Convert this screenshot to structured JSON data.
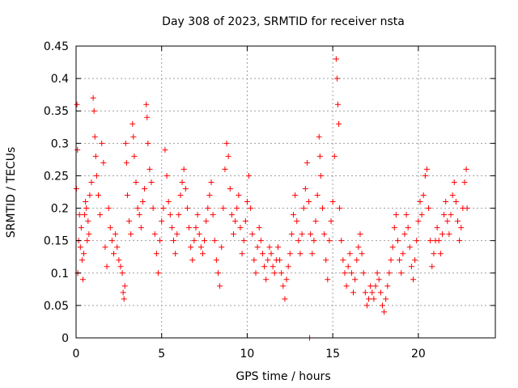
{
  "chart_data": {
    "type": "scatter",
    "title": "Day 308 of 2023, SRMTID for receiver nsta",
    "xlabel": "GPS time / hours",
    "ylabel": "SRMTID / TECUs",
    "xlim": [
      0,
      24.5
    ],
    "ylim": [
      0,
      0.45
    ],
    "x_ticks": [
      0,
      5,
      10,
      15,
      20
    ],
    "x_tick_labels": [
      "0",
      "5",
      "10",
      "15",
      "20"
    ],
    "y_ticks": [
      0,
      0.05,
      0.1,
      0.15,
      0.2,
      0.25,
      0.3,
      0.35,
      0.4,
      0.45
    ],
    "y_tick_labels": [
      "0",
      "0.05",
      "0.1",
      "0.15",
      "0.2",
      "0.25",
      "0.3",
      "0.35",
      "0.4",
      "0.45"
    ],
    "grid": true,
    "marker": "+",
    "color": "#ff0000",
    "series": [
      {
        "name": "SRMTID",
        "points": [
          [
            0.02,
            0.23
          ],
          [
            0.05,
            0.36
          ],
          [
            0.08,
            0.29
          ],
          [
            0.1,
            0.1
          ],
          [
            0.15,
            0.15
          ],
          [
            0.2,
            0.19
          ],
          [
            0.25,
            0.14
          ],
          [
            0.3,
            0.17
          ],
          [
            0.35,
            0.12
          ],
          [
            0.4,
            0.09
          ],
          [
            0.45,
            0.13
          ],
          [
            0.5,
            0.19
          ],
          [
            0.55,
            0.21
          ],
          [
            0.6,
            0.2
          ],
          [
            0.65,
            0.15
          ],
          [
            0.7,
            0.18
          ],
          [
            0.75,
            0.16
          ],
          [
            0.8,
            0.22
          ],
          [
            0.9,
            0.24
          ],
          [
            1.0,
            0.37
          ],
          [
            1.05,
            0.35
          ],
          [
            1.1,
            0.31
          ],
          [
            1.15,
            0.28
          ],
          [
            1.2,
            0.25
          ],
          [
            1.3,
            0.22
          ],
          [
            1.4,
            0.19
          ],
          [
            1.5,
            0.3
          ],
          [
            1.6,
            0.27
          ],
          [
            1.7,
            0.14
          ],
          [
            1.8,
            0.11
          ],
          [
            1.9,
            0.2
          ],
          [
            2.0,
            0.17
          ],
          [
            2.1,
            0.15
          ],
          [
            2.2,
            0.13
          ],
          [
            2.3,
            0.16
          ],
          [
            2.4,
            0.14
          ],
          [
            2.5,
            0.12
          ],
          [
            2.6,
            0.11
          ],
          [
            2.7,
            0.1
          ],
          [
            2.75,
            0.07
          ],
          [
            2.8,
            0.06
          ],
          [
            2.85,
            0.08
          ],
          [
            2.9,
            0.3
          ],
          [
            2.95,
            0.27
          ],
          [
            3.0,
            0.22
          ],
          [
            3.1,
            0.18
          ],
          [
            3.2,
            0.16
          ],
          [
            3.3,
            0.33
          ],
          [
            3.35,
            0.31
          ],
          [
            3.4,
            0.28
          ],
          [
            3.5,
            0.24
          ],
          [
            3.6,
            0.2
          ],
          [
            3.7,
            0.19
          ],
          [
            3.8,
            0.17
          ],
          [
            3.9,
            0.21
          ],
          [
            4.0,
            0.23
          ],
          [
            4.1,
            0.36
          ],
          [
            4.15,
            0.34
          ],
          [
            4.2,
            0.3
          ],
          [
            4.3,
            0.26
          ],
          [
            4.4,
            0.24
          ],
          [
            4.5,
            0.2
          ],
          [
            4.6,
            0.16
          ],
          [
            4.7,
            0.13
          ],
          [
            4.8,
            0.1
          ],
          [
            4.9,
            0.15
          ],
          [
            5.0,
            0.18
          ],
          [
            5.1,
            0.2
          ],
          [
            5.2,
            0.29
          ],
          [
            5.3,
            0.25
          ],
          [
            5.4,
            0.21
          ],
          [
            5.5,
            0.19
          ],
          [
            5.6,
            0.17
          ],
          [
            5.7,
            0.15
          ],
          [
            5.8,
            0.13
          ],
          [
            5.9,
            0.16
          ],
          [
            6.0,
            0.19
          ],
          [
            6.1,
            0.22
          ],
          [
            6.2,
            0.24
          ],
          [
            6.3,
            0.26
          ],
          [
            6.4,
            0.23
          ],
          [
            6.5,
            0.2
          ],
          [
            6.6,
            0.17
          ],
          [
            6.7,
            0.14
          ],
          [
            6.8,
            0.12
          ],
          [
            6.9,
            0.15
          ],
          [
            7.0,
            0.17
          ],
          [
            7.1,
            0.19
          ],
          [
            7.2,
            0.16
          ],
          [
            7.3,
            0.14
          ],
          [
            7.4,
            0.13
          ],
          [
            7.5,
            0.15
          ],
          [
            7.6,
            0.18
          ],
          [
            7.7,
            0.2
          ],
          [
            7.8,
            0.22
          ],
          [
            7.9,
            0.24
          ],
          [
            8.0,
            0.19
          ],
          [
            8.1,
            0.15
          ],
          [
            8.2,
            0.12
          ],
          [
            8.3,
            0.1
          ],
          [
            8.4,
            0.08
          ],
          [
            8.5,
            0.14
          ],
          [
            8.6,
            0.2
          ],
          [
            8.7,
            0.26
          ],
          [
            8.8,
            0.3
          ],
          [
            8.9,
            0.28
          ],
          [
            9.0,
            0.23
          ],
          [
            9.1,
            0.19
          ],
          [
            9.2,
            0.16
          ],
          [
            9.3,
            0.18
          ],
          [
            9.4,
            0.2
          ],
          [
            9.5,
            0.22
          ],
          [
            9.6,
            0.17
          ],
          [
            9.7,
            0.13
          ],
          [
            9.8,
            0.15
          ],
          [
            9.9,
            0.18
          ],
          [
            10.0,
            0.21
          ],
          [
            10.1,
            0.25
          ],
          [
            10.2,
            0.2
          ],
          [
            10.3,
            0.16
          ],
          [
            10.4,
            0.12
          ],
          [
            10.5,
            0.1
          ],
          [
            10.6,
            0.14
          ],
          [
            10.7,
            0.17
          ],
          [
            10.8,
            0.15
          ],
          [
            10.9,
            0.13
          ],
          [
            11.0,
            0.11
          ],
          [
            11.1,
            0.09
          ],
          [
            11.2,
            0.12
          ],
          [
            11.3,
            0.14
          ],
          [
            11.4,
            0.13
          ],
          [
            11.5,
            0.11
          ],
          [
            11.6,
            0.1
          ],
          [
            11.7,
            0.12
          ],
          [
            11.8,
            0.14
          ],
          [
            11.9,
            0.12
          ],
          [
            12.0,
            0.1
          ],
          [
            12.1,
            0.08
          ],
          [
            12.2,
            0.06
          ],
          [
            12.3,
            0.09
          ],
          [
            12.4,
            0.11
          ],
          [
            12.5,
            0.13
          ],
          [
            12.6,
            0.16
          ],
          [
            12.7,
            0.19
          ],
          [
            12.8,
            0.22
          ],
          [
            12.9,
            0.18
          ],
          [
            13.0,
            0.15
          ],
          [
            13.1,
            0.13
          ],
          [
            13.2,
            0.16
          ],
          [
            13.3,
            0.2
          ],
          [
            13.4,
            0.23
          ],
          [
            13.5,
            0.27
          ],
          [
            13.6,
            0.21
          ],
          [
            13.65,
            0.0
          ],
          [
            13.7,
            0.16
          ],
          [
            13.8,
            0.13
          ],
          [
            13.9,
            0.15
          ],
          [
            14.0,
            0.18
          ],
          [
            14.1,
            0.22
          ],
          [
            14.2,
            0.31
          ],
          [
            14.25,
            0.28
          ],
          [
            14.3,
            0.25
          ],
          [
            14.4,
            0.2
          ],
          [
            14.5,
            0.16
          ],
          [
            14.6,
            0.12
          ],
          [
            14.7,
            0.09
          ],
          [
            14.8,
            0.15
          ],
          [
            14.9,
            0.18
          ],
          [
            15.0,
            0.21
          ],
          [
            15.1,
            0.28
          ],
          [
            15.2,
            0.43
          ],
          [
            15.25,
            0.4
          ],
          [
            15.3,
            0.36
          ],
          [
            15.35,
            0.33
          ],
          [
            15.4,
            0.2
          ],
          [
            15.5,
            0.15
          ],
          [
            15.6,
            0.12
          ],
          [
            15.7,
            0.1
          ],
          [
            15.8,
            0.08
          ],
          [
            15.9,
            0.11
          ],
          [
            16.0,
            0.13
          ],
          [
            16.1,
            0.1
          ],
          [
            16.2,
            0.07
          ],
          [
            16.3,
            0.09
          ],
          [
            16.4,
            0.12
          ],
          [
            16.5,
            0.14
          ],
          [
            16.6,
            0.16
          ],
          [
            16.7,
            0.13
          ],
          [
            16.8,
            0.1
          ],
          [
            16.9,
            0.07
          ],
          [
            17.0,
            0.05
          ],
          [
            17.1,
            0.06
          ],
          [
            17.2,
            0.08
          ],
          [
            17.3,
            0.07
          ],
          [
            17.4,
            0.06
          ],
          [
            17.5,
            0.08
          ],
          [
            17.6,
            0.1
          ],
          [
            17.7,
            0.09
          ],
          [
            17.8,
            0.07
          ],
          [
            17.9,
            0.05
          ],
          [
            18.0,
            0.04
          ],
          [
            18.1,
            0.06
          ],
          [
            18.2,
            0.08
          ],
          [
            18.3,
            0.1
          ],
          [
            18.4,
            0.12
          ],
          [
            18.5,
            0.14
          ],
          [
            18.6,
            0.17
          ],
          [
            18.7,
            0.19
          ],
          [
            18.8,
            0.15
          ],
          [
            18.9,
            0.12
          ],
          [
            19.0,
            0.1
          ],
          [
            19.1,
            0.13
          ],
          [
            19.2,
            0.16
          ],
          [
            19.3,
            0.19
          ],
          [
            19.4,
            0.17
          ],
          [
            19.5,
            0.14
          ],
          [
            19.6,
            0.11
          ],
          [
            19.7,
            0.09
          ],
          [
            19.8,
            0.12
          ],
          [
            19.9,
            0.15
          ],
          [
            20.0,
            0.18
          ],
          [
            20.1,
            0.21
          ],
          [
            20.2,
            0.19
          ],
          [
            20.3,
            0.22
          ],
          [
            20.4,
            0.25
          ],
          [
            20.5,
            0.26
          ],
          [
            20.6,
            0.2
          ],
          [
            20.7,
            0.15
          ],
          [
            20.8,
            0.11
          ],
          [
            20.9,
            0.13
          ],
          [
            21.0,
            0.15
          ],
          [
            21.1,
            0.17
          ],
          [
            21.2,
            0.15
          ],
          [
            21.3,
            0.13
          ],
          [
            21.4,
            0.16
          ],
          [
            21.5,
            0.19
          ],
          [
            21.6,
            0.21
          ],
          [
            21.7,
            0.18
          ],
          [
            21.8,
            0.16
          ],
          [
            21.9,
            0.19
          ],
          [
            22.0,
            0.22
          ],
          [
            22.1,
            0.24
          ],
          [
            22.2,
            0.21
          ],
          [
            22.3,
            0.18
          ],
          [
            22.4,
            0.15
          ],
          [
            22.5,
            0.17
          ],
          [
            22.6,
            0.2
          ],
          [
            22.7,
            0.24
          ],
          [
            22.8,
            0.26
          ],
          [
            22.85,
            0.2
          ]
        ]
      }
    ]
  }
}
